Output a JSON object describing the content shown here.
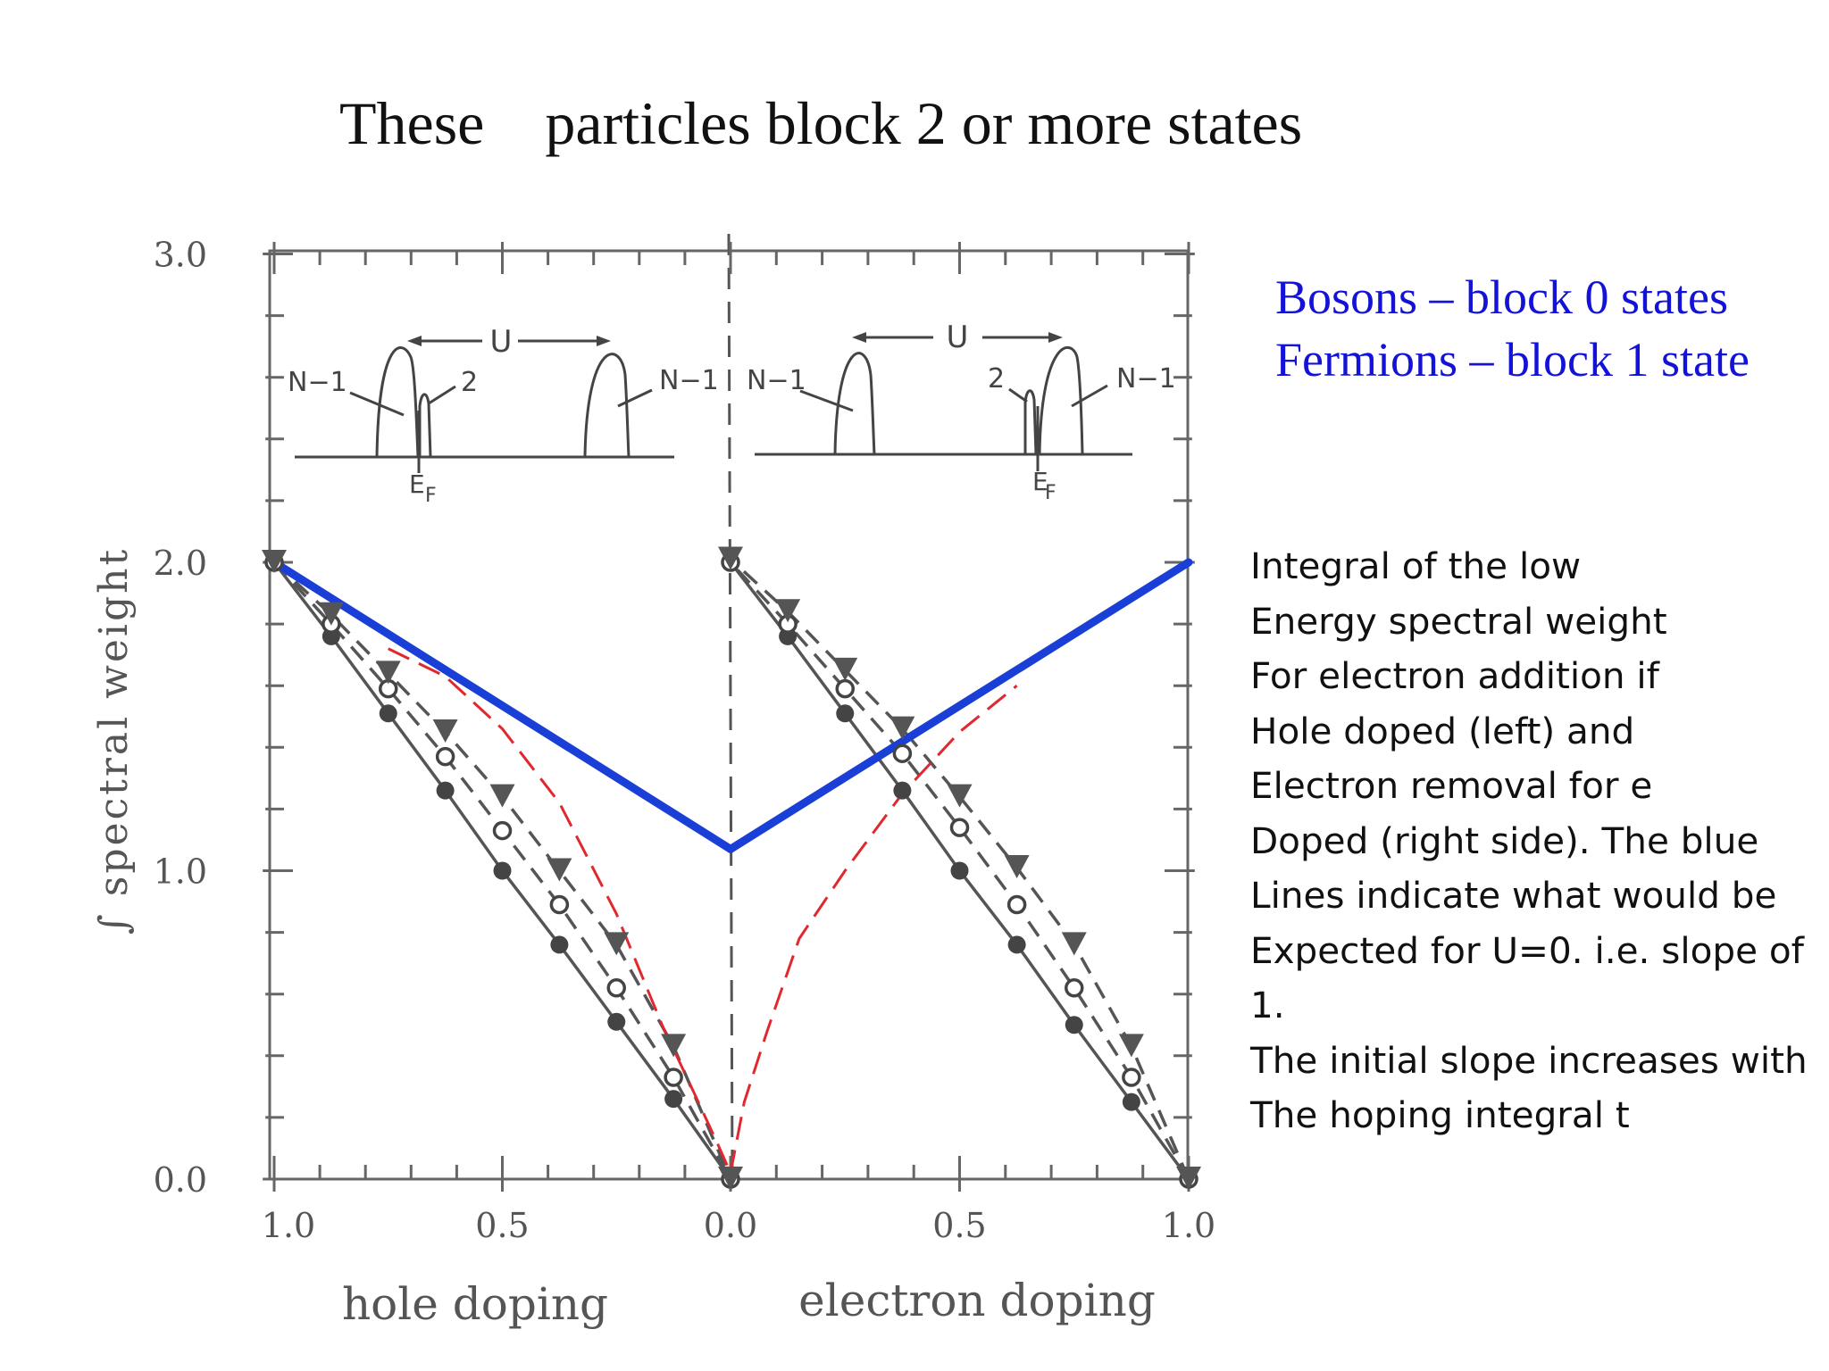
{
  "slide": {
    "title": "These    particles block 2 or more states"
  },
  "legend": {
    "lines": [
      "Bosons – block 0 states",
      "Fermions – block 1 state"
    ],
    "color": "#1313d8"
  },
  "note": {
    "lines": [
      "Integral of the low",
      "Energy spectral weight",
      "For electron addition if",
      "Hole doped (left) and",
      "Electron removal for e",
      "Doped (right side). The blue",
      "Lines indicate what would be",
      "Expected for U=0. i.e. slope of",
      "1.",
      "The initial slope increases with",
      "The hoping integral t"
    ]
  },
  "chart_data": {
    "type": "line",
    "ylabel": "∫ spectral weight",
    "xlabel_left": "hole doping",
    "xlabel_right": "electron doping",
    "ylim": [
      0,
      3
    ],
    "xlim_hole": [
      1.0,
      0.0
    ],
    "xlim_electron": [
      0.0,
      1.0
    ],
    "yticks": [
      "0.0",
      "1.0",
      "2.0",
      "3.0"
    ],
    "xticks": [
      "1.0",
      "0.5",
      "0.0",
      "0.5",
      "1.0"
    ],
    "x_doping": [
      1.0,
      0.875,
      0.75,
      0.625,
      0.5,
      0.375,
      0.25,
      0.125,
      0.0
    ],
    "series": [
      {
        "marker": "filled-circle",
        "line": "solid",
        "color": "#555555",
        "hole": [
          2.0,
          1.76,
          1.51,
          1.26,
          1.0,
          0.76,
          0.51,
          0.26,
          0.0
        ],
        "electron": [
          0.0,
          0.25,
          0.5,
          0.76,
          1.0,
          1.26,
          1.51,
          1.76,
          2.0
        ]
      },
      {
        "marker": "open-circle",
        "line": "dashed",
        "color": "#555555",
        "hole": [
          2.0,
          1.8,
          1.59,
          1.37,
          1.13,
          0.89,
          0.62,
          0.33,
          0.0
        ],
        "electron": [
          0.0,
          0.33,
          0.62,
          0.89,
          1.14,
          1.38,
          1.59,
          1.8,
          2.0
        ]
      },
      {
        "marker": "filled-triangle",
        "line": "dashed",
        "color": "#555555",
        "hole": [
          2.0,
          1.83,
          1.64,
          1.45,
          1.24,
          1.0,
          0.76,
          0.43,
          0.0
        ],
        "electron": [
          0.0,
          0.43,
          0.76,
          1.01,
          1.24,
          1.46,
          1.65,
          1.84,
          2.01
        ]
      }
    ],
    "red_dashed": {
      "color": "#e0282e",
      "hole": [
        [
          0.75,
          1.72
        ],
        [
          0.625,
          1.63
        ],
        [
          0.5,
          1.46
        ],
        [
          0.375,
          1.22
        ],
        [
          0.25,
          0.86
        ],
        [
          0.15,
          0.5
        ],
        [
          0.08,
          0.28
        ],
        [
          0.03,
          0.12
        ],
        [
          0.0,
          0.02
        ]
      ],
      "electron": [
        [
          0.0,
          0.02
        ],
        [
          0.03,
          0.25
        ],
        [
          0.08,
          0.48
        ],
        [
          0.15,
          0.78
        ],
        [
          0.25,
          1.0
        ],
        [
          0.375,
          1.25
        ],
        [
          0.5,
          1.45
        ],
        [
          0.625,
          1.6
        ]
      ]
    },
    "blue_line": {
      "color": "#1a3fd6",
      "hole": [
        [
          1.0,
          2.0
        ],
        [
          0.0,
          1.07
        ]
      ],
      "electron": [
        [
          0.0,
          1.07
        ],
        [
          1.0,
          2.0
        ]
      ]
    },
    "inset": {
      "u_label": "U",
      "n1_label": "N−1",
      "two_label": "2",
      "ef_label": "E",
      "ef_sub": "F"
    }
  }
}
